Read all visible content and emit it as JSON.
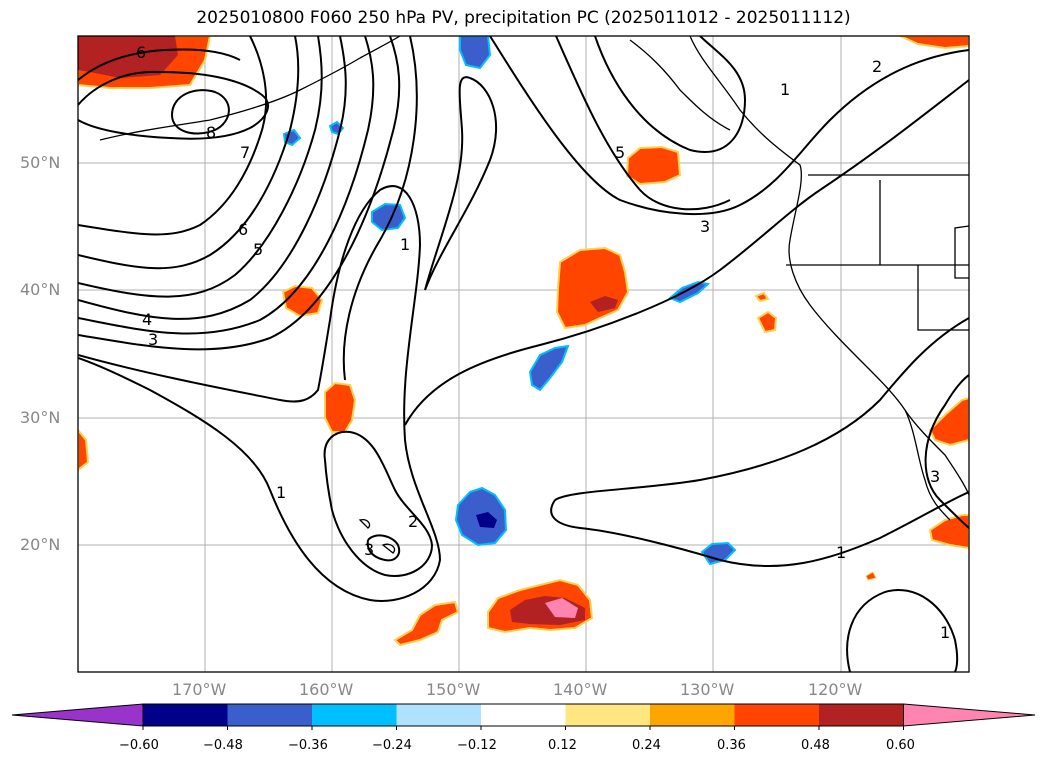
{
  "title": "2025010800 F060 250 hPa PV, precipitation PC (2025011012 - 2025011112)",
  "lat_labels": [
    "50°N",
    "40°N",
    "30°N",
    "20°N"
  ],
  "lon_labels": [
    "170°W",
    "160°W",
    "150°W",
    "140°W",
    "130°W",
    "120°W"
  ],
  "colorbar": {
    "ticks": [
      "−0.60",
      "−0.48",
      "−0.36",
      "−0.24",
      "−0.12",
      "0.12",
      "0.24",
      "0.36",
      "0.48",
      "0.60"
    ],
    "colors": [
      "#9933cc",
      "#00008b",
      "#3a5fcd",
      "#00bfff",
      "#b0e2ff",
      "#ffffff",
      "#ffe680",
      "#ffa500",
      "#ff4500",
      "#b22222",
      "#ff85b0"
    ]
  },
  "contour_labels": [
    "6",
    "8",
    "7",
    "6",
    "5",
    "4",
    "3",
    "1",
    "5",
    "3",
    "2",
    "1",
    "2",
    "3",
    "1",
    "1",
    "3",
    "1"
  ]
}
